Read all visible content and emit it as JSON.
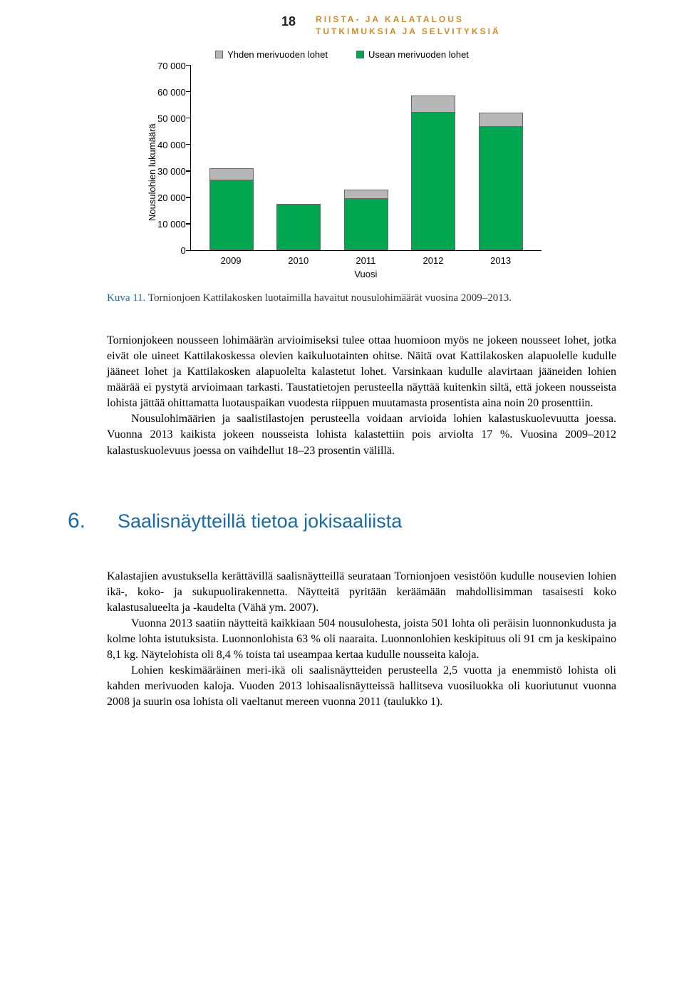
{
  "page_number": "18",
  "header": {
    "line1": "RIISTA- JA KALATALOUS",
    "line2": "TUTKIMUKSIA JA SELVITYKSIÄ"
  },
  "chart": {
    "type": "stacked-bar",
    "legend": [
      {
        "label": "Yhden merivuoden lohet",
        "color": "#b7b7b7"
      },
      {
        "label": "Usean merivuoden lohet",
        "color": "#00a650"
      }
    ],
    "ylabel": "Nousulohien lukumäärä",
    "xlabel": "Vuosi",
    "ylim": [
      0,
      70000
    ],
    "yticks": [
      "70 000",
      "60 000",
      "50 000",
      "40 000",
      "30 000",
      "20 000",
      "10 000",
      "0"
    ],
    "categories": [
      "2009",
      "2010",
      "2011",
      "2012",
      "2013"
    ],
    "series_green": [
      26500,
      17000,
      19500,
      52000,
      46500
    ],
    "series_gray": [
      4500,
      500,
      3500,
      6500,
      5500
    ],
    "background_color": "#ffffff",
    "axis_color": "#000000",
    "bar_border": "#666666",
    "label_fontsize": 13
  },
  "caption": {
    "label": "Kuva 11.",
    "text": "Tornionjoen Kattilakosken luotaimilla havaitut nousulohimäärät vuosina 2009–2013."
  },
  "para1_a": "Tornionjokeen nousseen lohimäärän arvioimiseksi tulee ottaa huomioon myös ne jokeen nousseet lohet, jotka eivät ole uineet Kattilakoskessa olevien kaikuluotainten ohitse. Näitä ovat Kattilakosken alapuolelle kudulle jääneet lohet ja Kattilakosken alapuolelta kalastetut lohet. Varsinkaan kudulle alavirtaan jääneiden lohien määrää ei pystytä arvioimaan tarkasti. Taustatietojen perusteella näyttää kuitenkin siltä, että jokeen nousseista lohista jättää ohittamatta luotauspaikan vuodesta riippuen muutamasta prosentista aina noin 20 prosenttiin.",
  "para1_b": "Nousulohimäärien ja saalistilastojen perusteella voidaan arvioida lohien kalastuskuolevuutta joessa. Vuonna 2013 kaikista jokeen nousseista lohista kalastettiin pois arviolta 17 %. Vuosina 2009–2012 kalastuskuolevuus joessa on vaihdellut 18–23 prosentin välillä.",
  "section": {
    "number": "6.",
    "title": "Saalisnäytteillä tietoa jokisaaliista"
  },
  "para2_a": "Kalastajien avustuksella kerättävillä saalisnäytteillä seurataan Tornionjoen vesistöön kudulle nousevien lohien ikä-, koko- ja sukupuolirakennetta. Näytteitä pyritään keräämään mahdollisimman tasaisesti koko kalastusalueelta ja -kaudelta (Vähä ym. 2007).",
  "para2_b": "Vuonna 2013 saatiin näytteitä kaikkiaan 504 nousulohesta, joista 501 lohta oli peräisin luonnonkudusta ja kolme lohta istutuksista. Luonnonlohista 63 % oli naaraita. Luonnonlohien keskipituus oli 91 cm ja keskipaino 8,1 kg. Näytelohista oli 8,4 % toista tai useampaa kertaa kudulle nousseita kaloja.",
  "para2_c": "Lohien keskimääräinen meri-ikä oli saalisnäytteiden perusteella 2,5 vuotta ja enemmistö lohista oli kahden merivuoden kaloja. Vuoden 2013 lohisaalisnäytteissä hallitseva vuosiluokka oli kuoriutunut vuonna 2008 ja suurin osa lohista oli vaeltanut mereen vuonna 2011 (taulukko 1)."
}
